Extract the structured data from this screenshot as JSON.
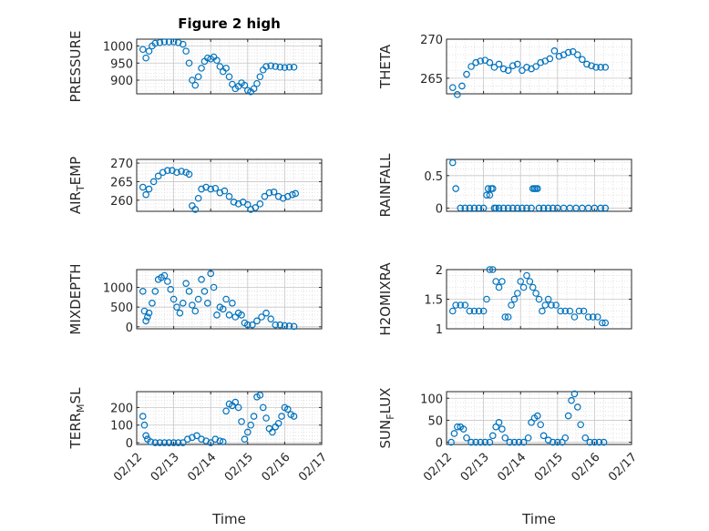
{
  "figure": {
    "title": "Figure 2 high",
    "marker_color": "#0072bd",
    "grid": true,
    "minor_grid": true
  },
  "chart_data": [
    {
      "type": "scatter",
      "ylabel": "PRESSURE",
      "title": "Figure 2 high",
      "xlim": [
        "02/12",
        "02/17"
      ],
      "ylim": [
        860,
        1020
      ],
      "xticks": [
        "02/12",
        "02/13",
        "02/14",
        "02/15",
        "02/16",
        "02/17"
      ],
      "show_xticks": false,
      "yticks": [
        1000,
        950,
        900
      ],
      "x": [
        "02/12 04:00",
        "02/12 06:00",
        "02/12 08:00",
        "02/12 10:00",
        "02/12 12:00",
        "02/12 15:00",
        "02/12 18:00",
        "02/12 21:00",
        "02/13 00:00",
        "02/13 03:00",
        "02/13 06:00",
        "02/13 08:00",
        "02/13 10:00",
        "02/13 12:00",
        "02/13 14:00",
        "02/13 16:00",
        "02/13 18:00",
        "02/13 20:00",
        "02/13 22:00",
        "02/14 00:00",
        "02/14 02:00",
        "02/14 04:00",
        "02/14 06:00",
        "02/14 08:00",
        "02/14 10:00",
        "02/14 12:00",
        "02/14 14:00",
        "02/14 16:00",
        "02/14 18:00",
        "02/14 20:00",
        "02/14 22:00",
        "02/15 00:00",
        "02/15 02:00",
        "02/15 04:00",
        "02/15 06:00",
        "02/15 08:00",
        "02/15 10:00",
        "02/15 12:00",
        "02/15 15:00",
        "02/15 18:00",
        "02/15 21:00",
        "02/16 00:00",
        "02/16 03:00",
        "02/16 06:00"
      ],
      "y": [
        990,
        965,
        985,
        1000,
        1008,
        1010,
        1012,
        1012,
        1012,
        1010,
        1005,
        985,
        950,
        900,
        885,
        910,
        935,
        955,
        965,
        962,
        968,
        958,
        940,
        925,
        935,
        910,
        888,
        875,
        882,
        892,
        885,
        870,
        866,
        875,
        890,
        910,
        930,
        940,
        942,
        940,
        938,
        937,
        938,
        938
      ]
    },
    {
      "type": "scatter",
      "ylabel": "THETA",
      "xlim": [
        "02/12",
        "02/17"
      ],
      "ylim": [
        263,
        270
      ],
      "xticks": [
        "02/12",
        "02/13",
        "02/14",
        "02/15",
        "02/16",
        "02/17"
      ],
      "show_xticks": false,
      "yticks": [
        270,
        265
      ],
      "x": [
        "02/12 04:00",
        "02/12 07:00",
        "02/12 10:00",
        "02/12 13:00",
        "02/12 16:00",
        "02/12 19:00",
        "02/12 22:00",
        "02/13 01:00",
        "02/13 04:00",
        "02/13 07:00",
        "02/13 10:00",
        "02/13 13:00",
        "02/13 16:00",
        "02/13 19:00",
        "02/13 22:00",
        "02/14 01:00",
        "02/14 04:00",
        "02/14 07:00",
        "02/14 10:00",
        "02/14 13:00",
        "02/14 16:00",
        "02/14 19:00",
        "02/14 22:00",
        "02/15 01:00",
        "02/15 04:00",
        "02/15 07:00",
        "02/15 10:00",
        "02/15 13:00",
        "02/15 16:00",
        "02/15 19:00",
        "02/15 22:00",
        "02/16 01:00",
        "02/16 04:00",
        "02/16 07:00"
      ],
      "y": [
        263.8,
        262.9,
        264.0,
        265.5,
        266.5,
        267.0,
        267.2,
        267.3,
        267.0,
        266.4,
        266.8,
        266.2,
        266.0,
        266.6,
        266.8,
        266.0,
        266.4,
        266.2,
        266.5,
        267.0,
        267.2,
        267.5,
        268.5,
        267.8,
        268.0,
        268.3,
        268.4,
        268.0,
        267.4,
        266.8,
        266.6,
        266.4,
        266.4,
        266.4
      ]
    },
    {
      "type": "scatter",
      "ylabel": "AIR_TEMP",
      "xlim": [
        "02/12",
        "02/17"
      ],
      "ylim": [
        257,
        271
      ],
      "xticks": [
        "02/12",
        "02/13",
        "02/14",
        "02/15",
        "02/16",
        "02/17"
      ],
      "show_xticks": false,
      "yticks": [
        270,
        265,
        260
      ],
      "x": [
        "02/12 04:00",
        "02/12 06:00",
        "02/12 08:00",
        "02/12 11:00",
        "02/12 14:00",
        "02/12 17:00",
        "02/12 20:00",
        "02/12 23:00",
        "02/13 02:00",
        "02/13 05:00",
        "02/13 08:00",
        "02/13 10:00",
        "02/13 12:00",
        "02/13 14:00",
        "02/13 16:00",
        "02/13 18:00",
        "02/13 21:00",
        "02/14 00:00",
        "02/14 03:00",
        "02/14 06:00",
        "02/14 09:00",
        "02/14 12:00",
        "02/14 15:00",
        "02/14 18:00",
        "02/14 21:00",
        "02/15 00:00",
        "02/15 02:00",
        "02/15 05:00",
        "02/15 08:00",
        "02/15 11:00",
        "02/15 14:00",
        "02/15 17:00",
        "02/15 20:00",
        "02/15 23:00",
        "02/16 02:00",
        "02/16 05:00",
        "02/16 07:00"
      ],
      "y": [
        263.5,
        261.5,
        263.0,
        265.0,
        266.5,
        267.5,
        268.0,
        268.0,
        267.5,
        267.8,
        267.5,
        267.0,
        258.5,
        257.5,
        260.5,
        263.0,
        263.5,
        263.0,
        263.2,
        262.0,
        262.5,
        261.0,
        259.5,
        259.0,
        259.5,
        258.8,
        257.5,
        258.0,
        259.0,
        261.0,
        262.0,
        262.2,
        261.0,
        260.5,
        261.0,
        261.5,
        261.8
      ]
    },
    {
      "type": "scatter",
      "ylabel": "RAINFALL",
      "xlim": [
        "02/12",
        "02/17"
      ],
      "ylim": [
        -0.05,
        0.75
      ],
      "xticks": [
        "02/12",
        "02/13",
        "02/14",
        "02/15",
        "02/16",
        "02/17"
      ],
      "show_xticks": false,
      "yticks": [
        0.5,
        0
      ],
      "x": [
        "02/12 04:00",
        "02/12 06:00",
        "02/12 09:00",
        "02/12 12:00",
        "02/12 15:00",
        "02/12 18:00",
        "02/12 21:00",
        "02/13 00:00",
        "02/13 02:00",
        "02/13 03:00",
        "02/13 04:00",
        "02/13 05:00",
        "02/13 06:00",
        "02/13 07:00",
        "02/13 08:00",
        "02/13 10:00",
        "02/13 13:00",
        "02/13 16:00",
        "02/13 19:00",
        "02/13 22:00",
        "02/14 01:00",
        "02/14 04:00",
        "02/14 07:00",
        "02/14 08:00",
        "02/14 09:00",
        "02/14 10:00",
        "02/14 11:00",
        "02/14 12:00",
        "02/14 15:00",
        "02/14 18:00",
        "02/14 21:00",
        "02/15 00:00",
        "02/15 04:00",
        "02/15 08:00",
        "02/15 12:00",
        "02/15 16:00",
        "02/15 20:00",
        "02/16 00:00",
        "02/16 04:00",
        "02/16 07:00"
      ],
      "y": [
        0.7,
        0.3,
        0,
        0,
        0,
        0,
        0,
        0,
        0.2,
        0.3,
        0.2,
        0.3,
        0.3,
        0,
        0,
        0,
        0,
        0,
        0,
        0,
        0,
        0,
        0,
        0.3,
        0.3,
        0.3,
        0.3,
        0,
        0,
        0,
        0,
        0,
        0,
        0,
        0,
        0,
        0,
        0,
        0,
        0
      ]
    },
    {
      "type": "scatter",
      "ylabel": "MIXDEPTH",
      "xlim": [
        "02/12",
        "02/17"
      ],
      "ylim": [
        -50,
        1450
      ],
      "xticks": [
        "02/12",
        "02/13",
        "02/14",
        "02/15",
        "02/16",
        "02/17"
      ],
      "show_xticks": false,
      "yticks": [
        1000,
        500,
        0
      ],
      "x": [
        "02/12 04:00",
        "02/12 05:00",
        "02/12 06:00",
        "02/12 07:00",
        "02/12 08:00",
        "02/12 10:00",
        "02/12 12:00",
        "02/12 14:00",
        "02/12 16:00",
        "02/12 18:00",
        "02/12 20:00",
        "02/12 22:00",
        "02/13 00:00",
        "02/13 02:00",
        "02/13 04:00",
        "02/13 06:00",
        "02/13 08:00",
        "02/13 10:00",
        "02/13 12:00",
        "02/13 14:00",
        "02/13 16:00",
        "02/13 18:00",
        "02/13 20:00",
        "02/13 22:00",
        "02/14 00:00",
        "02/14 02:00",
        "02/14 04:00",
        "02/14 06:00",
        "02/14 08:00",
        "02/14 10:00",
        "02/14 12:00",
        "02/14 14:00",
        "02/14 16:00",
        "02/14 18:00",
        "02/14 20:00",
        "02/14 22:00",
        "02/15 00:00",
        "02/15 03:00",
        "02/15 06:00",
        "02/15 09:00",
        "02/15 12:00",
        "02/15 15:00",
        "02/15 18:00",
        "02/15 21:00",
        "02/16 00:00",
        "02/16 03:00",
        "02/16 06:00"
      ],
      "y": [
        900,
        400,
        150,
        250,
        350,
        600,
        900,
        1200,
        1250,
        1300,
        1150,
        950,
        700,
        500,
        350,
        600,
        1100,
        900,
        550,
        400,
        700,
        1200,
        900,
        600,
        1350,
        1000,
        300,
        500,
        450,
        700,
        300,
        600,
        250,
        350,
        300,
        100,
        50,
        50,
        150,
        250,
        350,
        200,
        50,
        50,
        30,
        20,
        10
      ]
    },
    {
      "type": "scatter",
      "ylabel": "H2OMIXRA",
      "xlim": [
        "02/12",
        "02/17"
      ],
      "ylim": [
        1,
        2
      ],
      "xticks": [
        "02/12",
        "02/13",
        "02/14",
        "02/15",
        "02/16",
        "02/17"
      ],
      "show_xticks": false,
      "yticks": [
        2,
        1.5,
        1
      ],
      "x": [
        "02/12 04:00",
        "02/12 06:00",
        "02/12 09:00",
        "02/12 12:00",
        "02/12 15:00",
        "02/12 18:00",
        "02/12 21:00",
        "02/13 00:00",
        "02/13 02:00",
        "02/13 04:00",
        "02/13 06:00",
        "02/13 08:00",
        "02/13 10:00",
        "02/13 12:00",
        "02/13 14:00",
        "02/13 16:00",
        "02/13 18:00",
        "02/13 20:00",
        "02/13 22:00",
        "02/14 00:00",
        "02/14 02:00",
        "02/14 04:00",
        "02/14 06:00",
        "02/14 08:00",
        "02/14 10:00",
        "02/14 12:00",
        "02/14 14:00",
        "02/14 16:00",
        "02/14 18:00",
        "02/14 20:00",
        "02/14 23:00",
        "02/15 02:00",
        "02/15 05:00",
        "02/15 08:00",
        "02/15 11:00",
        "02/15 14:00",
        "02/15 17:00",
        "02/15 20:00",
        "02/15 23:00",
        "02/16 02:00",
        "02/16 05:00",
        "02/16 07:00"
      ],
      "y": [
        1.3,
        1.4,
        1.4,
        1.4,
        1.3,
        1.3,
        1.3,
        1.3,
        1.5,
        2.0,
        2.0,
        1.8,
        1.7,
        1.8,
        1.2,
        1.2,
        1.4,
        1.5,
        1.6,
        1.8,
        1.7,
        1.9,
        1.8,
        1.7,
        1.6,
        1.5,
        1.3,
        1.4,
        1.5,
        1.4,
        1.4,
        1.3,
        1.3,
        1.3,
        1.2,
        1.3,
        1.3,
        1.2,
        1.2,
        1.2,
        1.1,
        1.1
      ]
    },
    {
      "type": "scatter",
      "ylabel": "TERR_MSL",
      "xlabel": "Time",
      "xlim": [
        "02/12",
        "02/17"
      ],
      "ylim": [
        -10,
        290
      ],
      "xticks": [
        "02/12",
        "02/13",
        "02/14",
        "02/15",
        "02/16",
        "02/17"
      ],
      "show_xticks": true,
      "yticks": [
        200,
        100,
        0
      ],
      "x": [
        "02/12 04:00",
        "02/12 05:00",
        "02/12 06:00",
        "02/12 07:00",
        "02/12 09:00",
        "02/12 12:00",
        "02/12 15:00",
        "02/12 18:00",
        "02/12 21:00",
        "02/13 00:00",
        "02/13 03:00",
        "02/13 06:00",
        "02/13 09:00",
        "02/13 12:00",
        "02/13 15:00",
        "02/13 18:00",
        "02/13 21:00",
        "02/14 00:00",
        "02/14 03:00",
        "02/14 06:00",
        "02/14 08:00",
        "02/14 10:00",
        "02/14 12:00",
        "02/14 14:00",
        "02/14 16:00",
        "02/14 18:00",
        "02/14 20:00",
        "02/14 22:00",
        "02/15 00:00",
        "02/15 02:00",
        "02/15 04:00",
        "02/15 06:00",
        "02/15 08:00",
        "02/15 10:00",
        "02/15 12:00",
        "02/15 14:00",
        "02/15 16:00",
        "02/15 18:00",
        "02/15 20:00",
        "02/15 22:00",
        "02/16 00:00",
        "02/16 02:00",
        "02/16 04:00",
        "02/16 06:00"
      ],
      "y": [
        150,
        100,
        40,
        20,
        5,
        0,
        0,
        0,
        0,
        0,
        0,
        0,
        20,
        30,
        40,
        20,
        10,
        0,
        20,
        10,
        5,
        180,
        220,
        210,
        230,
        200,
        120,
        20,
        60,
        100,
        150,
        260,
        270,
        200,
        140,
        80,
        60,
        90,
        110,
        150,
        200,
        190,
        160,
        150
      ]
    },
    {
      "type": "scatter",
      "ylabel": "SUN_FLUX",
      "xlabel": "Time",
      "xlim": [
        "02/12",
        "02/17"
      ],
      "ylim": [
        -5,
        115
      ],
      "xticks": [
        "02/12",
        "02/13",
        "02/14",
        "02/15",
        "02/16",
        "02/17"
      ],
      "show_xticks": true,
      "yticks": [
        100,
        50,
        0
      ],
      "x": [
        "02/12 03:00",
        "02/12 05:00",
        "02/12 07:00",
        "02/12 09:00",
        "02/12 11:00",
        "02/12 13:00",
        "02/12 16:00",
        "02/12 19:00",
        "02/12 22:00",
        "02/13 01:00",
        "02/13 04:00",
        "02/13 06:00",
        "02/13 08:00",
        "02/13 10:00",
        "02/13 12:00",
        "02/13 14:00",
        "02/13 17:00",
        "02/13 20:00",
        "02/13 23:00",
        "02/14 02:00",
        "02/14 05:00",
        "02/14 07:00",
        "02/14 09:00",
        "02/14 11:00",
        "02/14 13:00",
        "02/14 15:00",
        "02/14 18:00",
        "02/14 21:00",
        "02/15 00:00",
        "02/15 03:00",
        "02/15 05:00",
        "02/15 07:00",
        "02/15 09:00",
        "02/15 11:00",
        "02/15 13:00",
        "02/15 15:00",
        "02/15 18:00",
        "02/15 21:00",
        "02/16 00:00",
        "02/16 03:00",
        "02/16 06:00"
      ],
      "y": [
        0,
        20,
        35,
        35,
        30,
        10,
        0,
        0,
        0,
        0,
        0,
        15,
        35,
        45,
        30,
        10,
        0,
        0,
        0,
        0,
        10,
        45,
        55,
        60,
        40,
        15,
        5,
        0,
        0,
        0,
        10,
        60,
        95,
        110,
        80,
        40,
        10,
        0,
        0,
        0,
        0
      ]
    }
  ]
}
